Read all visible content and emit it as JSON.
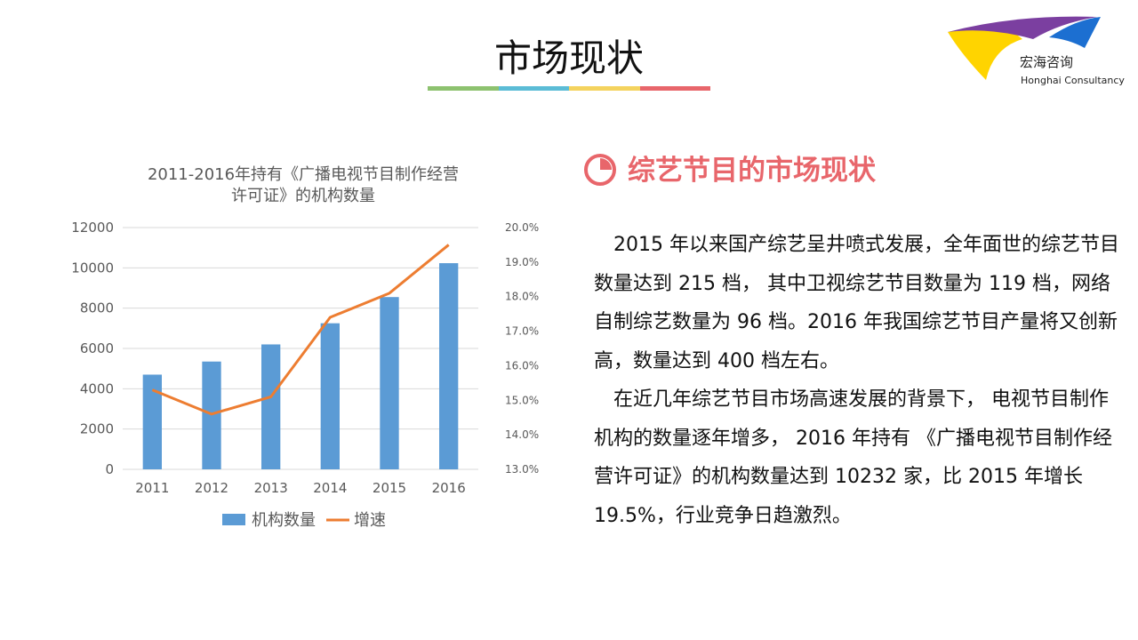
{
  "slide": {
    "title": "市场现状",
    "title_bar_colors": [
      "#8dc26f",
      "#5bbcd6",
      "#f4d35e",
      "#e8666b"
    ]
  },
  "logo": {
    "name_cn": "宏海咨询",
    "name_en": "Honghai Consultancy",
    "colors": [
      "#ffd400",
      "#7b3fa0",
      "#1c6fd1"
    ]
  },
  "section": {
    "heading": "综艺节目的市场现状",
    "icon": "pie-chart-icon",
    "color": "#e8666b"
  },
  "body": {
    "paragraphs": [
      "2015 年以来国产综艺呈井喷式发展，全年面世的综艺节目数量达到 215 档， 其中卫视综艺节目数量为 119 档，网络自制综艺数量为 96 档。2016 年我国综艺节目产量将又创新高，数量达到 400 档左右。",
      "在近几年综艺节目市场高速发展的背景下， 电视节目制作机构的数量逐年增多， 2016 年持有 《广播电视节目制作经营许可证》的机构数量达到 10232 家，比 2015 年增长 19.5%，行业竞争日趋激烈。"
    ]
  },
  "chart_data": {
    "type": "bar",
    "title": "2011-2016年持有《广播电视节目制作经营许可证》的机构数量",
    "categories": [
      "2011",
      "2012",
      "2013",
      "2014",
      "2015",
      "2016"
    ],
    "series": [
      {
        "name": "机构数量",
        "type": "bar",
        "axis": "left",
        "color": "#5b9bd5",
        "values": [
          4700,
          5350,
          6200,
          7250,
          8550,
          10232
        ]
      },
      {
        "name": "增速",
        "type": "line",
        "axis": "right",
        "color": "#ed7d31",
        "values": [
          0.153,
          0.146,
          0.151,
          0.174,
          0.181,
          0.195
        ]
      }
    ],
    "y_left": {
      "min": 0,
      "max": 12000,
      "ticks": [
        "0",
        "2000",
        "4000",
        "6000",
        "8000",
        "10000",
        "12000"
      ]
    },
    "y_right": {
      "min": 0.13,
      "max": 0.2,
      "ticks": [
        "13.0%",
        "14.0%",
        "15.0%",
        "16.0%",
        "17.0%",
        "18.0%",
        "19.0%",
        "20.0%"
      ]
    },
    "grid": true,
    "legend": "bottom"
  }
}
